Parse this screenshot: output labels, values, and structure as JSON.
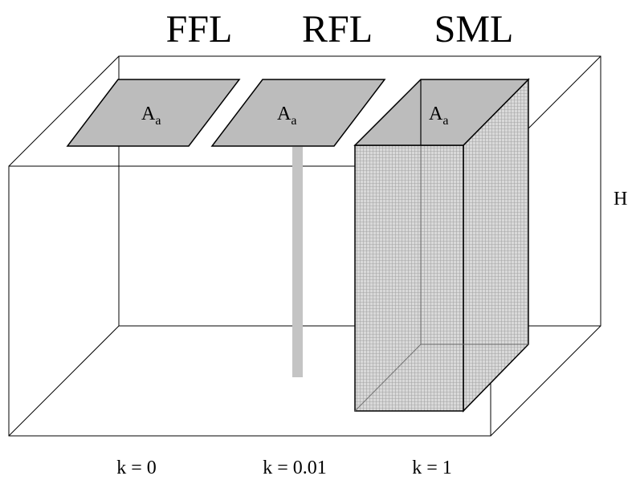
{
  "headers": {
    "ffl": "FFL",
    "rfl": "RFL",
    "sml": "SML"
  },
  "area_label": {
    "main": "A",
    "sub": "a"
  },
  "height_label": "H",
  "k_values": {
    "ffl": "k = 0",
    "rfl": "k = 0.01",
    "sml": "k = 1"
  },
  "colors": {
    "frame": "#000000",
    "plate_fill": "#bcbcbc",
    "rod_fill": "#c4c4c4",
    "column_fill": "#d7d7d7",
    "column_mesh": "#9a9a9a"
  }
}
